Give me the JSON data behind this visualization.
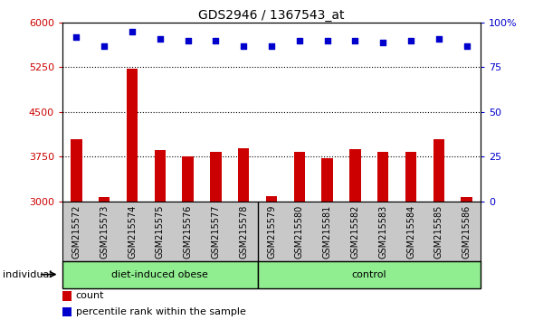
{
  "title": "GDS2946 / 1367543_at",
  "categories": [
    "GSM215572",
    "GSM215573",
    "GSM215574",
    "GSM215575",
    "GSM215576",
    "GSM215577",
    "GSM215578",
    "GSM215579",
    "GSM215580",
    "GSM215581",
    "GSM215582",
    "GSM215583",
    "GSM215584",
    "GSM215585",
    "GSM215586"
  ],
  "bar_values": [
    4050,
    3070,
    5230,
    3870,
    3750,
    3840,
    3900,
    3090,
    3830,
    3720,
    3880,
    3830,
    3830,
    4050,
    3070
  ],
  "dot_values": [
    92,
    87,
    95,
    91,
    90,
    90,
    87,
    87,
    90,
    90,
    90,
    89,
    90,
    91,
    87
  ],
  "bar_color": "#cc0000",
  "dot_color": "#0000cc",
  "ylim_left": [
    3000,
    6000
  ],
  "ylim_right": [
    0,
    100
  ],
  "yticks_left": [
    3000,
    3750,
    4500,
    5250,
    6000
  ],
  "yticks_right": [
    0,
    25,
    50,
    75,
    100
  ],
  "ytick_labels_right": [
    "0",
    "25",
    "50",
    "75",
    "100%"
  ],
  "hlines": [
    3750,
    4500,
    5250
  ],
  "groups": [
    {
      "label": "diet-induced obese",
      "start": 0,
      "end": 7,
      "color": "#90ee90"
    },
    {
      "label": "control",
      "start": 7,
      "end": 15,
      "color": "#90ee90"
    }
  ],
  "group_divider": 7,
  "individual_label": "individual",
  "legend_count_label": "count",
  "legend_pct_label": "percentile rank within the sample",
  "bg_color": "#c8c8c8",
  "plot_bg": "#ffffff",
  "tick_label_color_left": "#cc0000",
  "tick_label_color_right": "#0000cc",
  "bar_width": 0.4
}
